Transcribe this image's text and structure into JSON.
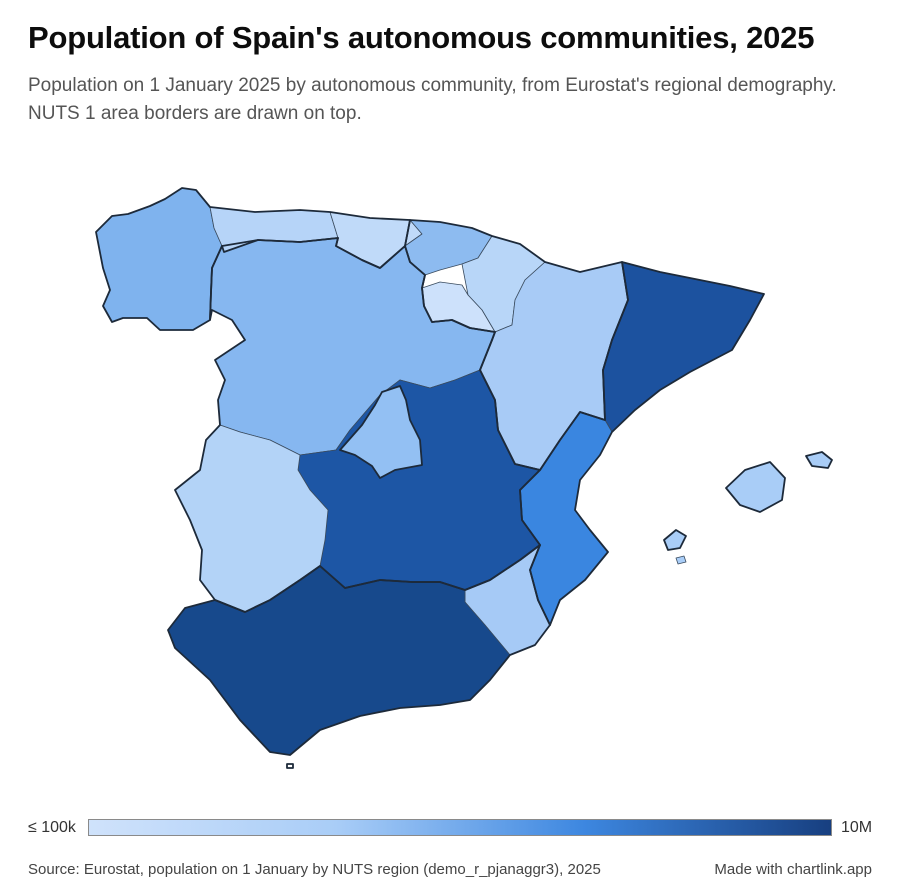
{
  "title": "Population of Spain's autonomous communities, 2025",
  "subtitle": "Population on 1 January 2025 by autonomous community, from Eurostat's regional demography. NUTS 1 area borders are drawn on top.",
  "legend": {
    "min_label": "≤ 100k",
    "max_label": "10M",
    "colors": [
      "#cfe2fb",
      "#a9cdf7",
      "#3d87e0",
      "#173f80"
    ]
  },
  "footer": {
    "source": "Source: Eurostat, population on 1 January by NUTS region (demo_r_pjanaggr3), 2025",
    "credit": "Made with chartlink.app"
  },
  "map_data": {
    "type": "choropleth",
    "regions": [
      {
        "name": "Galicia",
        "fill": "#7fb3ee"
      },
      {
        "name": "Asturias",
        "fill": "#b6d4f8"
      },
      {
        "name": "Cantabria",
        "fill": "#c0daf9"
      },
      {
        "name": "País Vasco",
        "fill": "#8dbbf0"
      },
      {
        "name": "Navarra",
        "fill": "#b8d6f8"
      },
      {
        "name": "La Rioja",
        "fill": "#cde1fb"
      },
      {
        "name": "Aragón",
        "fill": "#a8cbf6"
      },
      {
        "name": "Cataluña",
        "fill": "#1c529f"
      },
      {
        "name": "Castilla y León",
        "fill": "#86b7f0"
      },
      {
        "name": "Comunidad de Madrid",
        "fill": "#1d56a5"
      },
      {
        "name": "Castilla-La Mancha",
        "fill": "#93c0f3"
      },
      {
        "name": "Extremadura",
        "fill": "#b3d3f7"
      },
      {
        "name": "Comunitat Valenciana",
        "fill": "#3a86e0"
      },
      {
        "name": "Región de Murcia",
        "fill": "#a6caf6"
      },
      {
        "name": "Andalucía",
        "fill": "#17498c"
      },
      {
        "name": "Illes Balears",
        "fill": "#a9cdf7"
      }
    ]
  }
}
